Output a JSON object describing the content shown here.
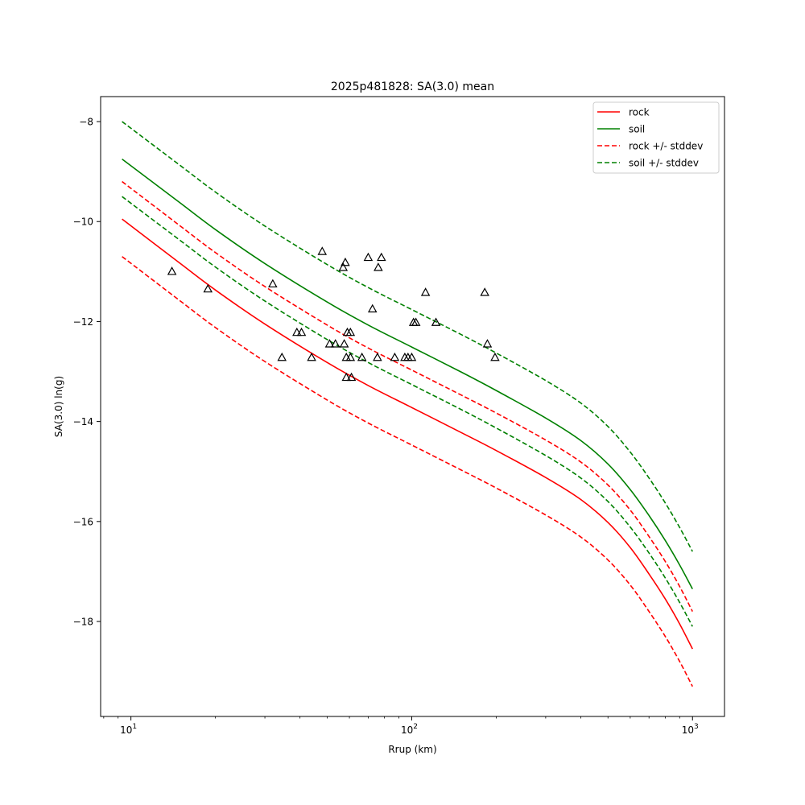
{
  "chart_data": {
    "type": "line",
    "title": "2025p481828: SA(3.0) mean",
    "xlabel": "Rrup (km)",
    "ylabel": "SA(3.0) ln(g)",
    "x_scale": "log",
    "xlim": [
      7.8,
      1300
    ],
    "ylim": [
      -19.9,
      -7.5
    ],
    "x_ticks": [
      {
        "value": 10,
        "base": "10",
        "exp": "1"
      },
      {
        "value": 100,
        "base": "10",
        "exp": "2"
      },
      {
        "value": 1000,
        "base": "10",
        "exp": "3"
      }
    ],
    "y_ticks": [
      {
        "value": -8,
        "label": "−8"
      },
      {
        "value": -10,
        "label": "−10"
      },
      {
        "value": -12,
        "label": "−12"
      },
      {
        "value": -14,
        "label": "−14"
      },
      {
        "value": -16,
        "label": "−16"
      },
      {
        "value": -18,
        "label": "−18"
      }
    ],
    "grid": false,
    "legend_position": "top-right",
    "series": [
      {
        "name": "rock",
        "color": "#ff0000",
        "dash": "solid",
        "x": [
          9.3,
          15,
          20,
          30,
          50,
          70,
          100,
          150,
          200,
          300,
          400,
          500,
          600,
          700,
          800,
          900,
          1000
        ],
        "y": [
          -9.95,
          -10.84,
          -11.37,
          -12.05,
          -12.82,
          -13.28,
          -13.72,
          -14.22,
          -14.58,
          -15.12,
          -15.56,
          -16.02,
          -16.52,
          -17.05,
          -17.55,
          -18.05,
          -18.55
        ]
      },
      {
        "name": "soil",
        "color": "#008000",
        "dash": "solid",
        "x": [
          9.3,
          15,
          20,
          30,
          50,
          70,
          100,
          150,
          200,
          300,
          400,
          500,
          600,
          700,
          800,
          900,
          1000
        ],
        "y": [
          -8.75,
          -9.63,
          -10.16,
          -10.84,
          -11.61,
          -12.07,
          -12.51,
          -13.01,
          -13.38,
          -13.93,
          -14.38,
          -14.85,
          -15.36,
          -15.88,
          -16.38,
          -16.87,
          -17.35
        ]
      },
      {
        "name": "rock +/- stddev",
        "color": "#ff0000",
        "dash": "dashed",
        "x": [
          9.3,
          15,
          20,
          30,
          50,
          70,
          100,
          150,
          200,
          300,
          400,
          500,
          600,
          700,
          800,
          900,
          1000
        ],
        "y": [
          -9.2,
          -10.09,
          -10.62,
          -11.3,
          -12.07,
          -12.53,
          -12.97,
          -13.47,
          -13.83,
          -14.37,
          -14.81,
          -15.27,
          -15.77,
          -16.3,
          -16.8,
          -17.3,
          -17.8
        ]
      },
      {
        "name": "",
        "color": "#ff0000",
        "dash": "dashed",
        "x": [
          9.3,
          15,
          20,
          30,
          50,
          70,
          100,
          150,
          200,
          300,
          400,
          500,
          600,
          700,
          800,
          900,
          1000
        ],
        "y": [
          -10.7,
          -11.59,
          -12.12,
          -12.8,
          -13.57,
          -14.03,
          -14.47,
          -14.97,
          -15.33,
          -15.87,
          -16.31,
          -16.77,
          -17.27,
          -17.8,
          -18.3,
          -18.8,
          -19.3
        ]
      },
      {
        "name": "soil +/- stddev",
        "color": "#008000",
        "dash": "dashed",
        "x": [
          9.3,
          15,
          20,
          30,
          50,
          70,
          100,
          150,
          200,
          300,
          400,
          500,
          600,
          700,
          800,
          900,
          1000
        ],
        "y": [
          -8.0,
          -8.88,
          -9.41,
          -10.09,
          -10.86,
          -11.32,
          -11.76,
          -12.26,
          -12.63,
          -13.18,
          -13.63,
          -14.1,
          -14.61,
          -15.13,
          -15.63,
          -16.12,
          -16.6
        ]
      },
      {
        "name": "",
        "color": "#008000",
        "dash": "dashed",
        "x": [
          9.3,
          15,
          20,
          30,
          50,
          70,
          100,
          150,
          200,
          300,
          400,
          500,
          600,
          700,
          800,
          900,
          1000
        ],
        "y": [
          -9.5,
          -10.38,
          -10.91,
          -11.59,
          -12.36,
          -12.82,
          -13.26,
          -13.76,
          -14.13,
          -14.68,
          -15.13,
          -15.6,
          -16.11,
          -16.63,
          -17.13,
          -17.62,
          -18.1
        ]
      }
    ],
    "observations": {
      "marker": "triangle",
      "color": "#000000",
      "points": [
        [
          14,
          -11.0
        ],
        [
          18.8,
          -11.35
        ],
        [
          32,
          -11.25
        ],
        [
          34.5,
          -12.72
        ],
        [
          39,
          -12.22
        ],
        [
          40.5,
          -12.22
        ],
        [
          44,
          -12.72
        ],
        [
          48,
          -10.6
        ],
        [
          51,
          -12.45
        ],
        [
          53.5,
          -12.45
        ],
        [
          57,
          -10.92
        ],
        [
          57.5,
          -12.45
        ],
        [
          58,
          -10.82
        ],
        [
          58.5,
          -12.72
        ],
        [
          58.5,
          -13.12
        ],
        [
          59,
          -12.22
        ],
        [
          60.5,
          -12.22
        ],
        [
          60.5,
          -12.72
        ],
        [
          61,
          -13.12
        ],
        [
          66.5,
          -12.72
        ],
        [
          70,
          -10.72
        ],
        [
          72.5,
          -11.75
        ],
        [
          75.5,
          -12.72
        ],
        [
          76,
          -10.92
        ],
        [
          78,
          -10.72
        ],
        [
          87,
          -12.72
        ],
        [
          94.5,
          -12.72
        ],
        [
          97,
          -12.72
        ],
        [
          100,
          -12.72
        ],
        [
          101.5,
          -12.02
        ],
        [
          103.5,
          -12.02
        ],
        [
          112,
          -11.42
        ],
        [
          122,
          -12.02
        ],
        [
          182,
          -11.42
        ],
        [
          186,
          -12.45
        ],
        [
          198,
          -12.72
        ]
      ]
    }
  }
}
